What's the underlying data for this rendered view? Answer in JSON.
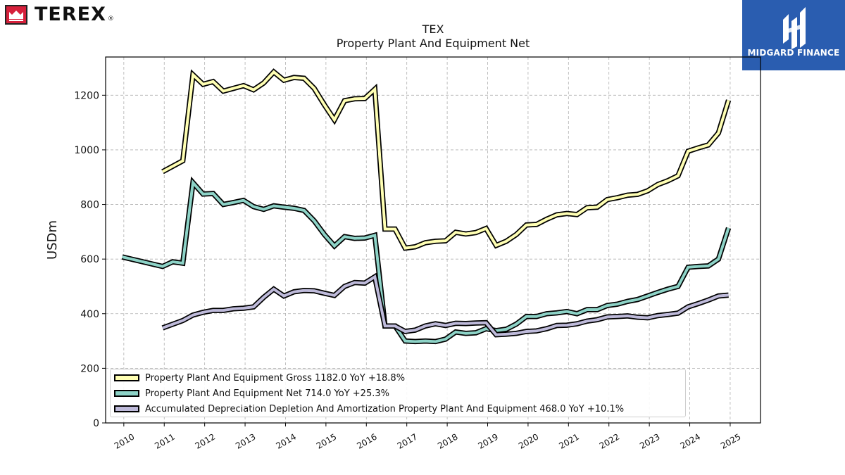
{
  "brand": {
    "name": "TEREX",
    "reg": "®",
    "primary_color": "#d6203b"
  },
  "watermark": {
    "name": "MIDGARD FINANCE",
    "color": "#2a5db0"
  },
  "chart_data": {
    "type": "line",
    "title": "TEX",
    "subtitle": "Property Plant And Equipment Net",
    "ylabel": "USDm",
    "xlabel": "",
    "xlim": [
      2009.55,
      2025.75
    ],
    "ylim": [
      0,
      1340
    ],
    "yticks": [
      0,
      200,
      400,
      600,
      800,
      1000,
      1200
    ],
    "xticks": [
      "2010",
      "2011",
      "2012",
      "2013",
      "2014",
      "2015",
      "2016",
      "2017",
      "2018",
      "2019",
      "2020",
      "2021",
      "2022",
      "2023",
      "2024",
      "2025"
    ],
    "grid": true,
    "legend_position": "lower-left",
    "series": [
      {
        "name": "Property Plant And Equipment Gross  1182.0 YoY +18.8%",
        "color": "#ffffb3",
        "points": [
          [
            2010.96,
            920
          ],
          [
            2011.46,
            960
          ],
          [
            2011.71,
            1275
          ],
          [
            2011.96,
            1240
          ],
          [
            2012.21,
            1250
          ],
          [
            2012.46,
            1215
          ],
          [
            2012.71,
            1225
          ],
          [
            2012.96,
            1235
          ],
          [
            2013.21,
            1220
          ],
          [
            2013.46,
            1245
          ],
          [
            2013.71,
            1285
          ],
          [
            2013.96,
            1255
          ],
          [
            2014.21,
            1265
          ],
          [
            2014.46,
            1262
          ],
          [
            2014.71,
            1225
          ],
          [
            2014.96,
            1165
          ],
          [
            2015.21,
            1110
          ],
          [
            2015.46,
            1180
          ],
          [
            2015.71,
            1187
          ],
          [
            2015.96,
            1188
          ],
          [
            2016.21,
            1222
          ],
          [
            2016.46,
            710
          ],
          [
            2016.71,
            710
          ],
          [
            2016.96,
            640
          ],
          [
            2017.21,
            645
          ],
          [
            2017.46,
            660
          ],
          [
            2017.71,
            665
          ],
          [
            2017.96,
            667
          ],
          [
            2018.21,
            698
          ],
          [
            2018.46,
            692
          ],
          [
            2018.71,
            697
          ],
          [
            2018.96,
            712
          ],
          [
            2019.21,
            650
          ],
          [
            2019.46,
            665
          ],
          [
            2019.71,
            690
          ],
          [
            2019.96,
            725
          ],
          [
            2020.21,
            727
          ],
          [
            2020.46,
            746
          ],
          [
            2020.71,
            762
          ],
          [
            2020.96,
            767
          ],
          [
            2021.21,
            763
          ],
          [
            2021.46,
            788
          ],
          [
            2021.71,
            790
          ],
          [
            2021.96,
            818
          ],
          [
            2022.21,
            825
          ],
          [
            2022.46,
            834
          ],
          [
            2022.71,
            837
          ],
          [
            2022.96,
            850
          ],
          [
            2023.21,
            873
          ],
          [
            2023.46,
            887
          ],
          [
            2023.71,
            905
          ],
          [
            2023.96,
            995
          ],
          [
            2024.21,
            1007
          ],
          [
            2024.46,
            1018
          ],
          [
            2024.71,
            1062
          ],
          [
            2024.96,
            1182
          ]
        ]
      },
      {
        "name": "Property Plant And Equipment Net  714.0 YoY +25.3%",
        "color": "#8dd3c7",
        "points": [
          [
            2009.96,
            608
          ],
          [
            2010.96,
            573
          ],
          [
            2011.21,
            590
          ],
          [
            2011.46,
            585
          ],
          [
            2011.71,
            880
          ],
          [
            2011.96,
            838
          ],
          [
            2012.21,
            840
          ],
          [
            2012.46,
            800
          ],
          [
            2012.71,
            807
          ],
          [
            2012.96,
            815
          ],
          [
            2013.21,
            792
          ],
          [
            2013.46,
            782
          ],
          [
            2013.71,
            795
          ],
          [
            2013.96,
            790
          ],
          [
            2014.21,
            786
          ],
          [
            2014.46,
            778
          ],
          [
            2014.71,
            740
          ],
          [
            2014.96,
            690
          ],
          [
            2015.21,
            648
          ],
          [
            2015.46,
            682
          ],
          [
            2015.71,
            676
          ],
          [
            2015.96,
            677
          ],
          [
            2016.21,
            687
          ],
          [
            2016.46,
            355
          ],
          [
            2016.71,
            355
          ],
          [
            2016.96,
            300
          ],
          [
            2017.21,
            298
          ],
          [
            2017.46,
            300
          ],
          [
            2017.71,
            298
          ],
          [
            2017.96,
            307
          ],
          [
            2018.21,
            333
          ],
          [
            2018.46,
            328
          ],
          [
            2018.71,
            330
          ],
          [
            2018.96,
            345
          ],
          [
            2019.21,
            338
          ],
          [
            2019.46,
            343
          ],
          [
            2019.71,
            362
          ],
          [
            2019.96,
            390
          ],
          [
            2020.21,
            390
          ],
          [
            2020.46,
            400
          ],
          [
            2020.71,
            403
          ],
          [
            2020.96,
            408
          ],
          [
            2021.21,
            400
          ],
          [
            2021.46,
            415
          ],
          [
            2021.71,
            415
          ],
          [
            2021.96,
            430
          ],
          [
            2022.21,
            435
          ],
          [
            2022.46,
            445
          ],
          [
            2022.71,
            452
          ],
          [
            2022.96,
            465
          ],
          [
            2023.21,
            478
          ],
          [
            2023.46,
            490
          ],
          [
            2023.71,
            500
          ],
          [
            2023.96,
            570
          ],
          [
            2024.21,
            573
          ],
          [
            2024.46,
            575
          ],
          [
            2024.71,
            600
          ],
          [
            2024.96,
            714
          ]
        ]
      },
      {
        "name": "Accumulated Depreciation Depletion And Amortization Property Plant And Equipment  468.0 YoY +10.1%",
        "color": "#bebada",
        "points": [
          [
            2010.96,
            348
          ],
          [
            2011.46,
            375
          ],
          [
            2011.71,
            395
          ],
          [
            2011.96,
            405
          ],
          [
            2012.21,
            412
          ],
          [
            2012.46,
            412
          ],
          [
            2012.71,
            418
          ],
          [
            2012.96,
            420
          ],
          [
            2013.21,
            425
          ],
          [
            2013.46,
            460
          ],
          [
            2013.71,
            490
          ],
          [
            2013.96,
            465
          ],
          [
            2014.21,
            480
          ],
          [
            2014.46,
            485
          ],
          [
            2014.71,
            484
          ],
          [
            2014.96,
            475
          ],
          [
            2015.21,
            467
          ],
          [
            2015.46,
            500
          ],
          [
            2015.71,
            514
          ],
          [
            2015.96,
            512
          ],
          [
            2016.21,
            535
          ],
          [
            2016.46,
            355
          ],
          [
            2016.71,
            355
          ],
          [
            2016.96,
            335
          ],
          [
            2017.21,
            340
          ],
          [
            2017.46,
            355
          ],
          [
            2017.71,
            363
          ],
          [
            2017.96,
            357
          ],
          [
            2018.21,
            365
          ],
          [
            2018.46,
            364
          ],
          [
            2018.71,
            366
          ],
          [
            2018.96,
            367
          ],
          [
            2019.21,
            323
          ],
          [
            2019.46,
            325
          ],
          [
            2019.71,
            328
          ],
          [
            2019.96,
            335
          ],
          [
            2020.21,
            337
          ],
          [
            2020.46,
            345
          ],
          [
            2020.71,
            357
          ],
          [
            2020.96,
            358
          ],
          [
            2021.21,
            363
          ],
          [
            2021.46,
            373
          ],
          [
            2021.71,
            378
          ],
          [
            2021.96,
            388
          ],
          [
            2022.21,
            390
          ],
          [
            2022.46,
            392
          ],
          [
            2022.71,
            387
          ],
          [
            2022.96,
            385
          ],
          [
            2023.21,
            393
          ],
          [
            2023.46,
            397
          ],
          [
            2023.71,
            402
          ],
          [
            2023.96,
            425
          ],
          [
            2024.21,
            437
          ],
          [
            2024.46,
            450
          ],
          [
            2024.71,
            465
          ],
          [
            2024.96,
            468
          ]
        ]
      }
    ]
  }
}
